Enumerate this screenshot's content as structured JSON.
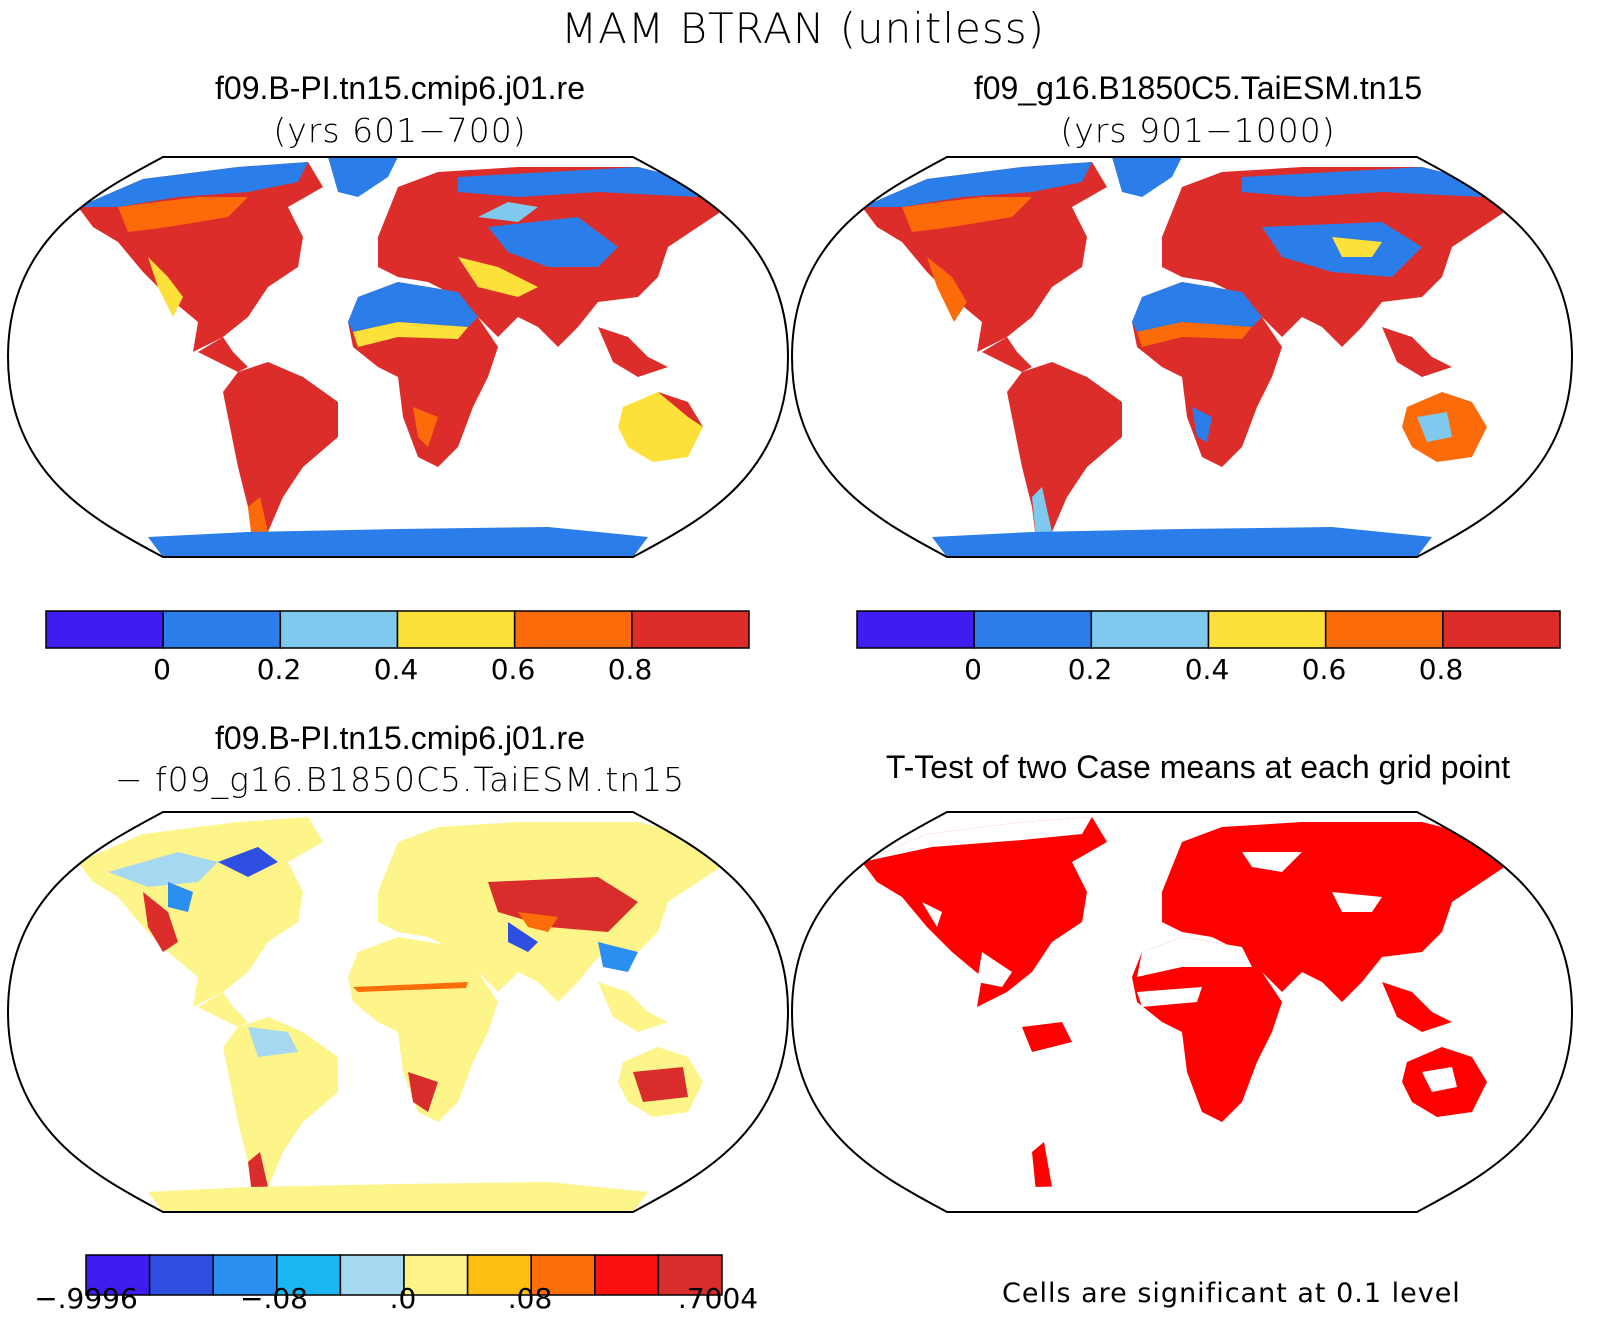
{
  "title": "MAM BTRAN (unitless)",
  "panels": [
    {
      "id": "p1",
      "title": "f09.B-PI.tn15.cmip6.j01.re",
      "subtitle": "(yrs 601−700)",
      "type": "field"
    },
    {
      "id": "p2",
      "title": "f09_g16.B1850C5.TaiESM.tn15",
      "subtitle": "(yrs 901−1000)",
      "type": "field"
    },
    {
      "id": "p3",
      "title": "f09.B-PI.tn15.cmip6.j01.re",
      "subtitle": "− f09_g16.B1850C5.TaiESM.tn15",
      "type": "difference"
    },
    {
      "id": "p4",
      "title": "T-Test of two Case means at each grid point",
      "subtitle": "",
      "type": "significance"
    }
  ],
  "colorbar_field": {
    "colors": [
      "#3f1df0",
      "#2b7de9",
      "#7fc8ee",
      "#fde13a",
      "#fc6b0a",
      "#dd2d2a"
    ],
    "labels": [
      "0",
      "0.2",
      "0.4",
      "0.6",
      "0.8"
    ]
  },
  "colorbar_diff": {
    "colors": [
      "#3f1df0",
      "#2f4ee2",
      "#2a8ff0",
      "#1bb7f3",
      "#a7d8f2",
      "#fdf48a",
      "#fdbd12",
      "#fc6e0a",
      "#fa0f0f",
      "#d82d2b"
    ],
    "labels": [
      "−.9996",
      "−.08",
      ".0",
      ".08",
      ".7004"
    ]
  },
  "significance_note": "Cells are significant at 0.1 level",
  "colors": {
    "significant": "#ff0000",
    "ocean": "#ffffff",
    "coast": "#000000"
  }
}
